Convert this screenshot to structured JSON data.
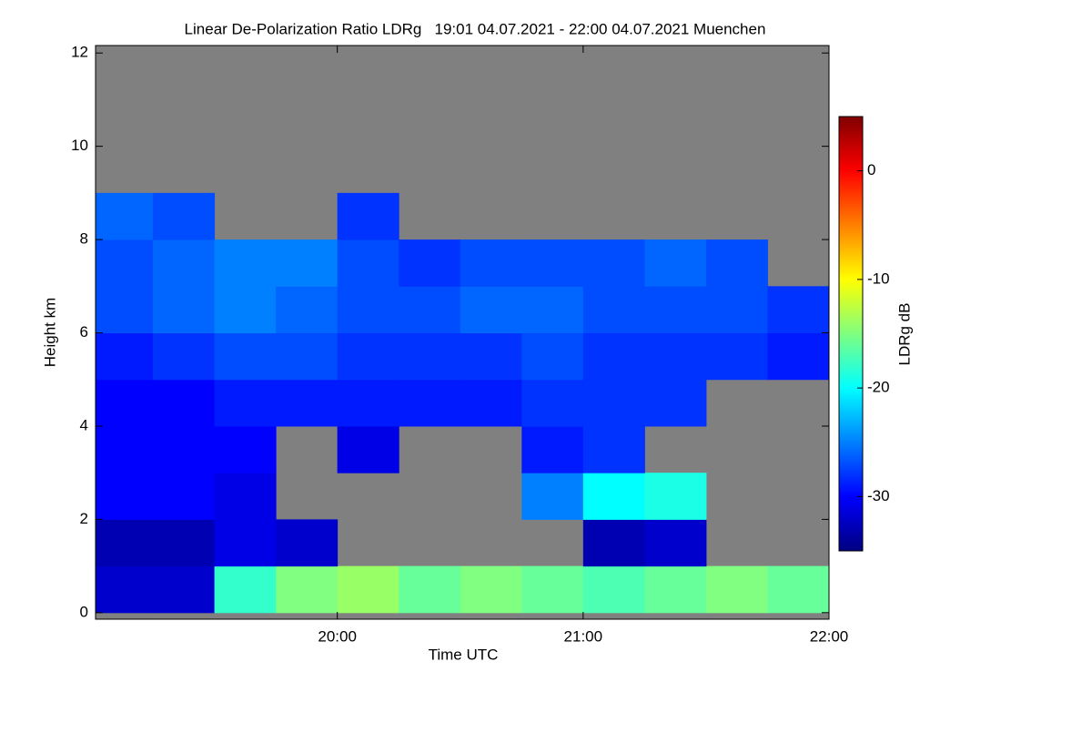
{
  "chart_data": {
    "type": "heatmap",
    "title": "Linear De-Polarization Ratio LDRg   19:01 04.07.2021 - 22:00 04.07.2021 Muenchen",
    "x_label": "Time UTC",
    "y_label": "Height km",
    "colorbar_label": "LDRg dB",
    "colormap": "jet",
    "missing_color": "#808080",
    "x_bins": [
      19.0167,
      19.25,
      19.5,
      19.75,
      20,
      20.25,
      20.5,
      20.75,
      21,
      21.25,
      21.5,
      21.75,
      22
    ],
    "y_bins": [
      0,
      1,
      2,
      3,
      4,
      5,
      6,
      7,
      8,
      9,
      10,
      11,
      12
    ],
    "z": [
      [
        -32,
        -32,
        -18,
        -15,
        -14,
        -16,
        -15,
        -16,
        -17,
        -16,
        -15,
        -16
      ],
      [
        -33,
        -33,
        -31,
        -32,
        null,
        null,
        null,
        null,
        -33,
        -32,
        null,
        null
      ],
      [
        -30,
        -30,
        -31,
        null,
        null,
        null,
        null,
        -25,
        -20,
        -19,
        null,
        null
      ],
      [
        -30,
        -30,
        -30,
        null,
        -31,
        null,
        null,
        -29,
        -28,
        null,
        null,
        null
      ],
      [
        -30,
        -30,
        -29,
        -29,
        -29,
        -29,
        -29,
        -28,
        -28,
        -28,
        null,
        null
      ],
      [
        -29,
        -28,
        -27,
        -27,
        -28,
        -28,
        -28,
        -27,
        -28,
        -28,
        -28,
        -29
      ],
      [
        -27,
        -26,
        -25,
        -26,
        -27,
        -27,
        -26,
        -26,
        -27,
        -27,
        -27,
        -28
      ],
      [
        -27,
        -26,
        -25,
        -25,
        -27,
        -28,
        -27,
        -27,
        -27,
        -26,
        -27,
        null
      ],
      [
        -26,
        -27,
        null,
        null,
        -28,
        null,
        null,
        null,
        null,
        null,
        null,
        null
      ],
      [
        null,
        null,
        null,
        null,
        null,
        null,
        null,
        null,
        null,
        null,
        null,
        null
      ],
      [
        null,
        null,
        null,
        null,
        null,
        null,
        null,
        null,
        null,
        null,
        null,
        null
      ],
      [
        null,
        null,
        null,
        null,
        null,
        null,
        null,
        null,
        null,
        null,
        null,
        null
      ]
    ],
    "xlim": [
      19.0167,
      22.0
    ],
    "xticks": [
      {
        "value": 20,
        "label": "20:00"
      },
      {
        "value": 21,
        "label": "21:00"
      },
      {
        "value": 22,
        "label": "22:00"
      }
    ],
    "ylim": [
      -0.14,
      12.16
    ],
    "yticks": [
      0,
      2,
      4,
      6,
      8,
      10,
      12
    ],
    "zlim": [
      -35,
      5
    ],
    "zticks": [
      0,
      -10,
      -20,
      -30
    ]
  }
}
